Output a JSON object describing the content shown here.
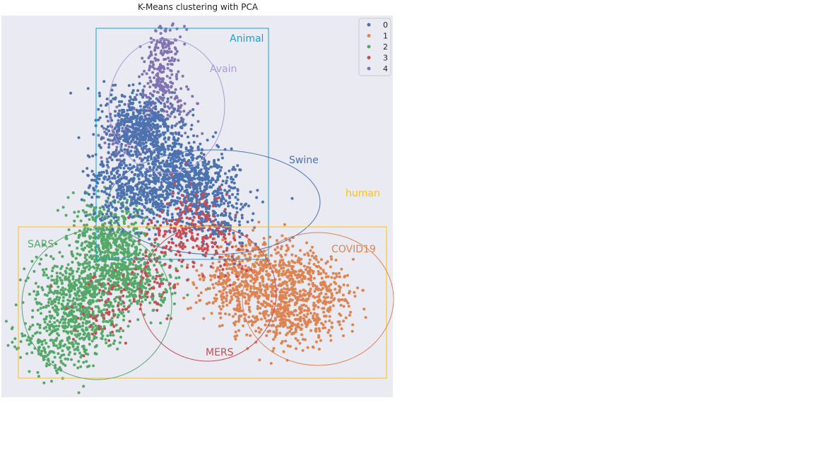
{
  "chart_data": {
    "type": "scatter",
    "title": "K-Means clustering with PCA",
    "xlabel": "",
    "ylabel": "",
    "grid": false,
    "legend_position": "top-right",
    "series": [
      {
        "name": "0",
        "color": "#4c72b0",
        "centers": [
          [
            0.38,
            0.3
          ],
          [
            0.44,
            0.4
          ],
          [
            0.33,
            0.28
          ],
          [
            0.5,
            0.43
          ],
          [
            0.41,
            0.46
          ],
          [
            0.3,
            0.45
          ],
          [
            0.55,
            0.52
          ]
        ],
        "spread": [
          0.045,
          0.045
        ],
        "count": 1900
      },
      {
        "name": "1",
        "color": "#dd8452",
        "centers": [
          [
            0.73,
            0.68
          ],
          [
            0.64,
            0.65
          ],
          [
            0.8,
            0.73
          ],
          [
            0.68,
            0.77
          ],
          [
            0.75,
            0.8
          ],
          [
            0.59,
            0.71
          ]
        ],
        "spread": [
          0.05,
          0.04
        ],
        "count": 1200
      },
      {
        "name": "2",
        "color": "#55a868",
        "centers": [
          [
            0.25,
            0.68
          ],
          [
            0.17,
            0.72
          ],
          [
            0.3,
            0.63
          ],
          [
            0.22,
            0.8
          ],
          [
            0.35,
            0.7
          ],
          [
            0.14,
            0.85
          ],
          [
            0.27,
            0.56
          ]
        ],
        "spread": [
          0.05,
          0.045
        ],
        "count": 1700
      },
      {
        "name": "3",
        "color": "#c44e52",
        "centers": [
          [
            0.5,
            0.55
          ],
          [
            0.42,
            0.6
          ],
          [
            0.37,
            0.71
          ],
          [
            0.56,
            0.61
          ],
          [
            0.26,
            0.77
          ],
          [
            0.47,
            0.52
          ]
        ],
        "spread": [
          0.04,
          0.04
        ],
        "count": 380
      },
      {
        "name": "4",
        "color": "#8172b2",
        "centers": [
          [
            0.41,
            0.13
          ],
          [
            0.4,
            0.2
          ],
          [
            0.37,
            0.28
          ],
          [
            0.42,
            0.07
          ],
          [
            0.31,
            0.33
          ],
          [
            0.45,
            0.24
          ]
        ],
        "spread": [
          0.025,
          0.035
        ],
        "count": 450
      }
    ],
    "annotations": [
      {
        "label": "Animal",
        "color": "#1a9fd6",
        "shape": "rect"
      },
      {
        "label": "Avain",
        "color": "#a99bd4",
        "shape": "ellipse"
      },
      {
        "label": "Swine",
        "color": "#4c72b0",
        "shape": "ellipse"
      },
      {
        "label": "human",
        "color": "#ffc20e",
        "shape": "rect"
      },
      {
        "label": "SARS",
        "color": "#55a868",
        "shape": "ellipse"
      },
      {
        "label": "COVID19",
        "color": "#dd8452",
        "shape": "ellipse"
      },
      {
        "label": "MERS",
        "color": "#c44e52",
        "shape": "ellipse"
      }
    ]
  },
  "colors": {
    "plot_background": "#eaeaf2",
    "page_background": "#ffffff"
  }
}
